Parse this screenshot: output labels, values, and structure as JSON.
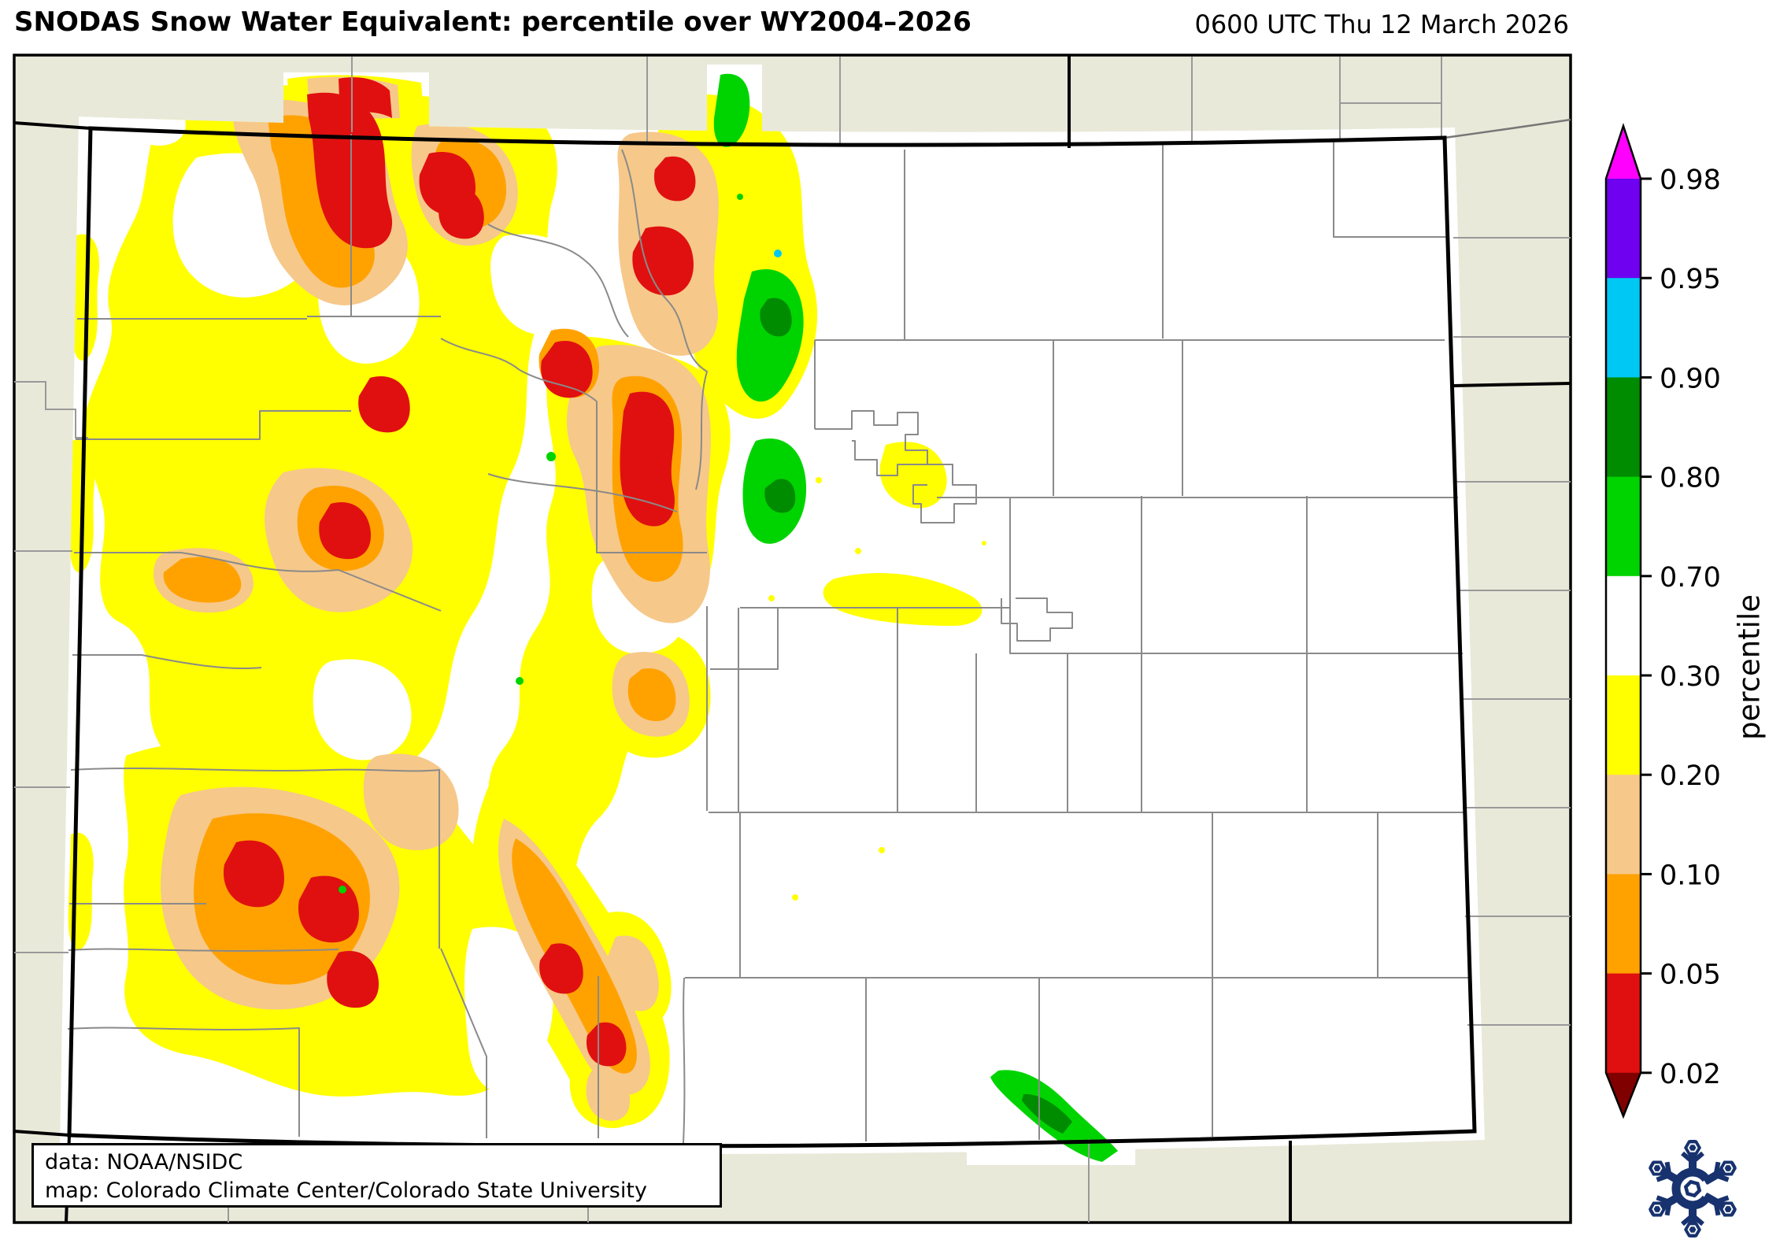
{
  "header": {
    "title": "SNODAS Snow Water Equivalent: percentile over WY2004–2026",
    "timestamp": "0600 UTC Thu 12 March 2026"
  },
  "credits": {
    "data_source": "data: NOAA/NSIDC",
    "map_source": "map: Colorado Climate Center/Colorado State University"
  },
  "colorbar": {
    "axis_label": "percentile",
    "tick_labels": [
      "0.98",
      "0.95",
      "0.90",
      "0.80",
      "0.70",
      "0.30",
      "0.20",
      "0.10",
      "0.05",
      "0.02"
    ],
    "segment_colors": [
      "#6f00f0",
      "#00c8f5",
      "#008c00",
      "#00d400",
      "#ffffff",
      "#ffff00",
      "#f6c88a",
      "#ffa200",
      "#e01010"
    ],
    "over_color": "#ff00ff",
    "under_color": "#800000"
  },
  "map": {
    "region": "Colorado",
    "background_color": "#e9e9da",
    "no_data_fill": "#ffffff",
    "county_line_color": "#8a8a8a",
    "state_border_color": "#000000",
    "classes": [
      {
        "range": "> 0.98",
        "color": "#ff00ff"
      },
      {
        "range": "0.95–0.98",
        "color": "#6f00f0"
      },
      {
        "range": "0.90–0.95",
        "color": "#00c8f5"
      },
      {
        "range": "0.80–0.90",
        "color": "#008c00"
      },
      {
        "range": "0.70–0.80",
        "color": "#00d400"
      },
      {
        "range": "0.30–0.70",
        "color": "#ffffff"
      },
      {
        "range": "0.20–0.30",
        "color": "#ffff00"
      },
      {
        "range": "0.10–0.20",
        "color": "#f6c88a"
      },
      {
        "range": "0.05–0.10",
        "color": "#ffa200"
      },
      {
        "range": "0.02–0.05",
        "color": "#e01010"
      },
      {
        "range": "< 0.02",
        "color": "#800000"
      }
    ]
  },
  "logo": {
    "name": "Colorado Climate Center snowflake",
    "letter": "C",
    "color": "#17326e"
  }
}
